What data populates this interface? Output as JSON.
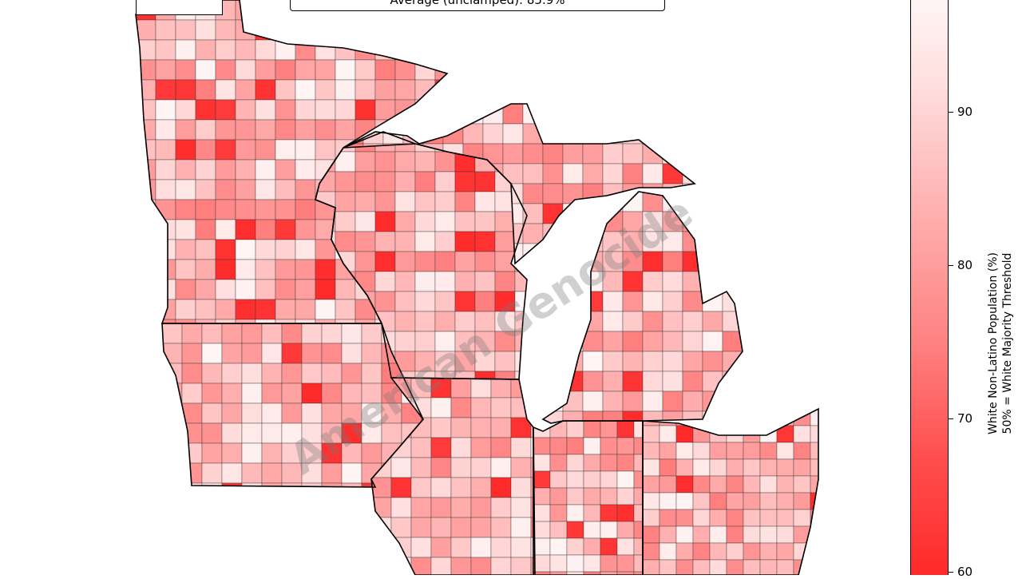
{
  "title": "Average (unclamped): 85.9%",
  "colorbar": {
    "label_line1": "White Non-Latino Population (%)",
    "label_line2": "50% = White Majority Threshold",
    "ticks": [
      "60",
      "70",
      "80",
      "90"
    ],
    "range": [
      60,
      97
    ],
    "color_low": "#ff2a2a",
    "color_high": "#fff5f5"
  },
  "watermark": "American Genocide",
  "map": {
    "states": [
      "Minnesota",
      "Wisconsin",
      "Michigan",
      "Iowa",
      "Illinois",
      "Indiana",
      "Ohio"
    ],
    "border_color": "#000000",
    "county_border_color": "#333333"
  }
}
